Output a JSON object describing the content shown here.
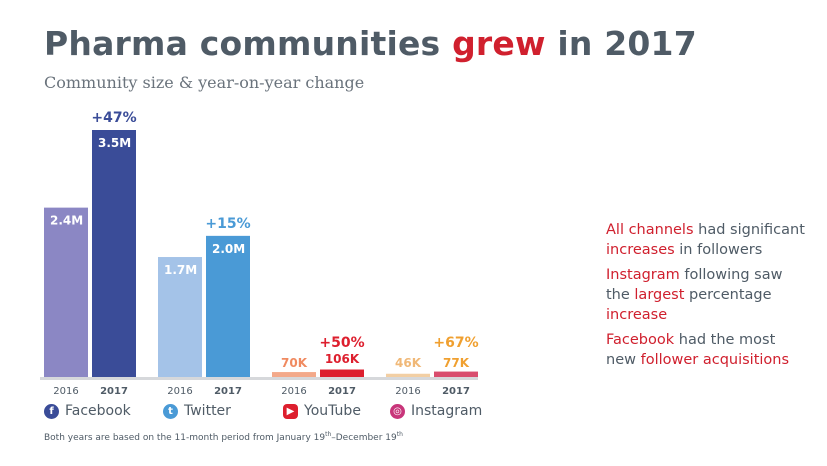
{
  "header": {
    "title_part1": "Pharma communities ",
    "title_highlight": "grew",
    "title_part2": " in 2017",
    "subtitle": "Community size & year-on-year change"
  },
  "chart_data": {
    "type": "bar",
    "categories": [
      "Facebook",
      "Twitter",
      "YouTube",
      "Instagram"
    ],
    "x_tick_labels": [
      "2016",
      "2017"
    ],
    "series": [
      {
        "name": "2016",
        "values": [
          2400000,
          1700000,
          70000,
          46000
        ],
        "labels": [
          "2.4M",
          "1.7M",
          "70K",
          "46K"
        ]
      },
      {
        "name": "2017",
        "values": [
          3500000,
          2000000,
          106000,
          77000
        ],
        "labels": [
          "3.5M",
          "2.0M",
          "106K",
          "77K"
        ]
      }
    ],
    "changes": [
      "+47%",
      "+15%",
      "+50%",
      "+67%"
    ],
    "ylim": [
      0,
      3500000
    ],
    "colors": {
      "2016": [
        "#8b87c4",
        "#a4c3e8",
        "#f3a98a",
        "#f2cfa4"
      ],
      "2017": [
        "#3a4c98",
        "#4a9ad6",
        "#dd1f2e",
        "#d94d6e"
      ],
      "change": [
        "#3a4c98",
        "#4a9ad6",
        "#dd1f2e",
        "#f0a030"
      ],
      "label_2016_small": [
        "",
        "",
        "#f08a60",
        "#f0b877"
      ],
      "label_2017_small": [
        "",
        "",
        "#ffffff",
        "#f0a030"
      ]
    }
  },
  "legend": {
    "items": [
      {
        "name": "Facebook",
        "icon": "facebook-icon",
        "color": "#3a4c98",
        "glyph": "f"
      },
      {
        "name": "Twitter",
        "icon": "twitter-icon",
        "color": "#4a9ad6",
        "glyph": "t"
      },
      {
        "name": "YouTube",
        "icon": "youtube-icon",
        "color": "#dd1f2e",
        "glyph": "▶"
      },
      {
        "name": "Instagram",
        "icon": "instagram-icon",
        "color": "#c8357a",
        "glyph": "◎"
      }
    ]
  },
  "footnote": {
    "text1": "Both years are based on the 11-month period from January 19",
    "sup1": "th",
    "text2": "–December 19",
    "sup2": "th"
  },
  "insights": [
    {
      "parts": [
        [
          "All channels",
          true
        ],
        [
          " had significant ",
          false
        ],
        [
          "increases",
          true
        ],
        [
          " in followers",
          false
        ]
      ]
    },
    {
      "parts": [
        [
          "Instagram",
          true
        ],
        [
          " following saw the ",
          false
        ],
        [
          "largest",
          true
        ],
        [
          " percentage ",
          false
        ],
        [
          "increase",
          true
        ]
      ]
    },
    {
      "parts": [
        [
          "Facebook",
          true
        ],
        [
          " had the most new ",
          false
        ],
        [
          "follower acquisitions",
          true
        ]
      ]
    }
  ]
}
